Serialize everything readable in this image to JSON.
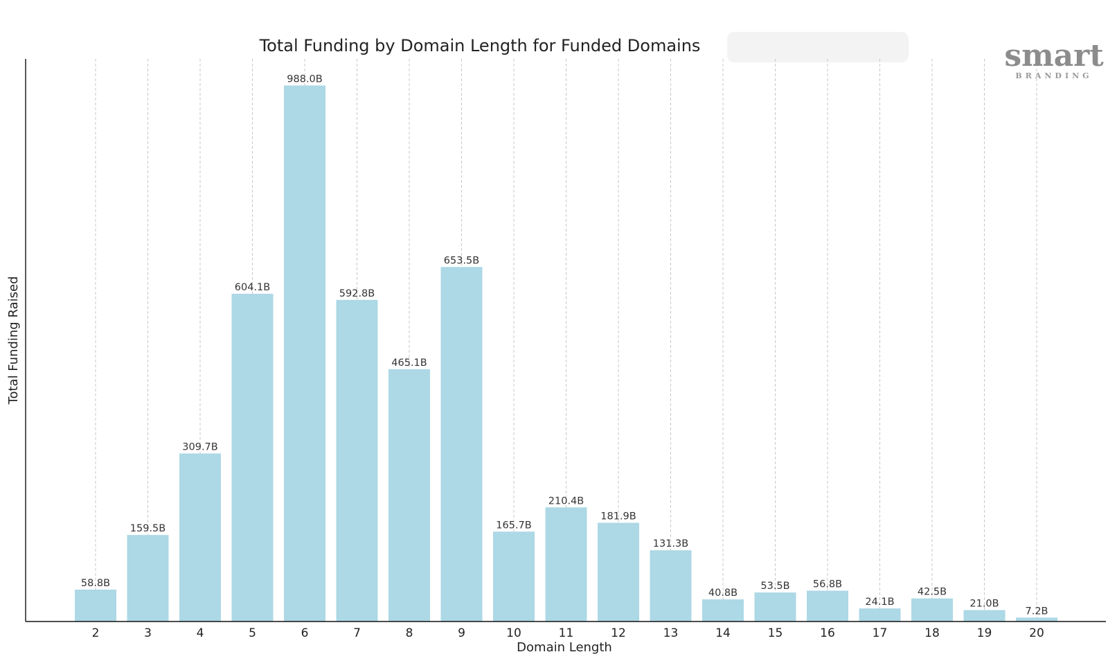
{
  "logo": {
    "main": "smart",
    "sub": "BRANDING"
  },
  "colors": {
    "bar": "#add8e6",
    "axis": "#111111",
    "grid": "#c7c7c7",
    "text": "#222222"
  },
  "chart_data": {
    "type": "bar",
    "title": "Total Funding by Domain Length for Funded Domains",
    "xlabel": "Domain Length",
    "ylabel": "Total Funding Raised",
    "categories": [
      "2",
      "3",
      "4",
      "5",
      "6",
      "7",
      "8",
      "9",
      "10",
      "11",
      "12",
      "13",
      "14",
      "15",
      "16",
      "17",
      "18",
      "19",
      "20"
    ],
    "values": [
      58.8,
      159.5,
      309.7,
      604.1,
      988.0,
      592.8,
      465.1,
      653.5,
      165.7,
      210.4,
      181.9,
      131.3,
      40.8,
      53.5,
      56.8,
      24.1,
      42.5,
      21.0,
      7.2
    ],
    "data_labels": [
      "58.8B",
      "159.5B",
      "309.7B",
      "604.1B",
      "988.0B",
      "592.8B",
      "465.1B",
      "653.5B",
      "165.7B",
      "210.4B",
      "181.9B",
      "131.3B",
      "40.8B",
      "53.5B",
      "56.8B",
      "24.1B",
      "42.5B",
      "21.0B",
      "7.2B"
    ],
    "ylim": [
      0,
      1037
    ],
    "grid": "vertical dashed",
    "y_ticks_visible": false
  }
}
